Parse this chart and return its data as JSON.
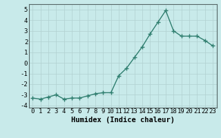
{
  "x": [
    0,
    1,
    2,
    3,
    4,
    5,
    6,
    7,
    8,
    9,
    10,
    11,
    12,
    13,
    14,
    15,
    16,
    17,
    18,
    19,
    20,
    21,
    22,
    23
  ],
  "y": [
    -3.3,
    -3.4,
    -3.2,
    -3.0,
    -3.4,
    -3.3,
    -3.3,
    -3.1,
    -2.9,
    -2.8,
    -2.8,
    -1.2,
    -0.5,
    0.5,
    1.5,
    2.7,
    3.8,
    4.9,
    3.0,
    2.5,
    2.5,
    2.5,
    2.1,
    1.6
  ],
  "line_color": "#2e7d6e",
  "marker": "+",
  "bg_color": "#c8eaea",
  "grid_color": "#b0d0d0",
  "xlabel": "Humidex (Indice chaleur)",
  "xlim": [
    -0.5,
    23.5
  ],
  "ylim": [
    -4.2,
    5.5
  ],
  "yticks": [
    -4,
    -3,
    -2,
    -1,
    0,
    1,
    2,
    3,
    4,
    5
  ],
  "ytick_labels": [
    "-4",
    "-3",
    "-2",
    "-1",
    "0",
    "1",
    "2",
    "3",
    "4",
    "5"
  ],
  "xticks": [
    0,
    1,
    2,
    3,
    4,
    5,
    6,
    7,
    8,
    9,
    10,
    11,
    12,
    13,
    14,
    15,
    16,
    17,
    18,
    19,
    20,
    21,
    22,
    23
  ],
  "xtick_labels": [
    "0",
    "1",
    "2",
    "3",
    "4",
    "5",
    "6",
    "7",
    "8",
    "9",
    "10",
    "11",
    "12",
    "13",
    "14",
    "15",
    "16",
    "17",
    "18",
    "19",
    "20",
    "21",
    "22",
    "23"
  ],
  "font_size": 6.5,
  "xlabel_fontsize": 7.5,
  "linewidth": 1.0,
  "markersize": 4.5,
  "markeredgewidth": 1.0
}
